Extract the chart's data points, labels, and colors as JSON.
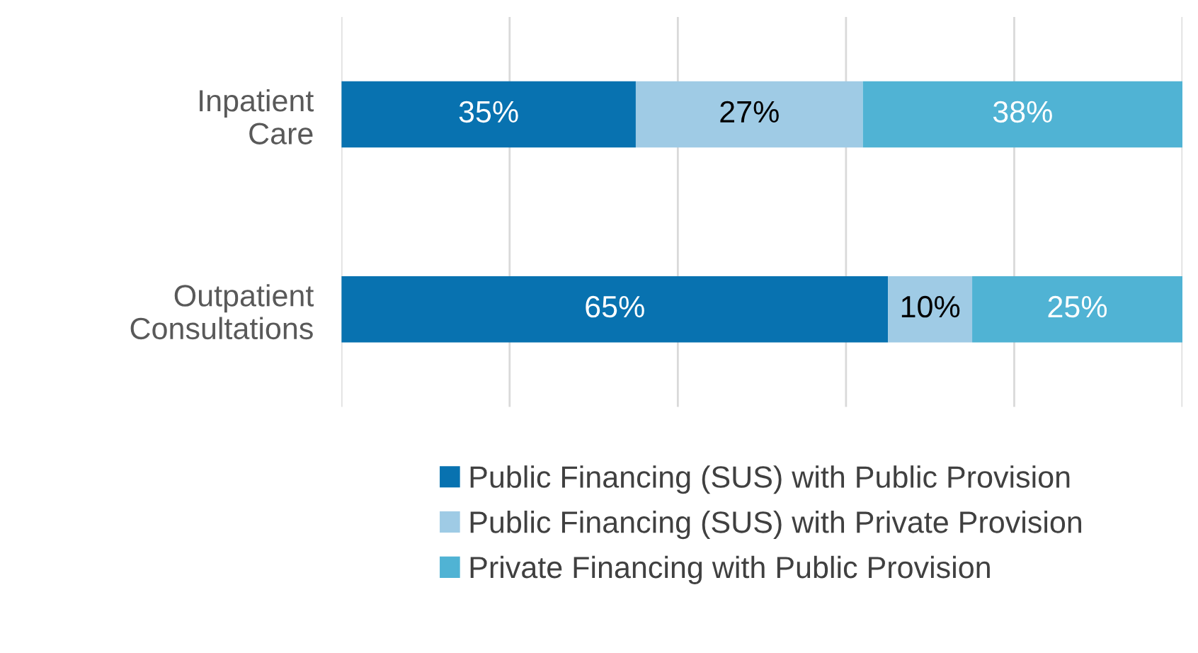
{
  "chart_data": {
    "type": "bar",
    "orientation": "horizontal",
    "stacked": true,
    "categories": [
      "Inpatient\nCare",
      "Outpatient\nConsultations"
    ],
    "series": [
      {
        "name": "Public Financing (SUS) with Public Provision",
        "color": "#0872b0",
        "values": [
          35,
          65
        ],
        "value_labels": [
          "35%",
          "65%"
        ]
      },
      {
        "name": "Public Financing (SUS) with Private Provision",
        "color": "#9fcbe5",
        "values": [
          27,
          10
        ],
        "value_labels": [
          "27%",
          "10%"
        ]
      },
      {
        "name": "Private Financing with Public Provision",
        "color": "#50b3d4",
        "values": [
          38,
          25
        ],
        "value_labels": [
          "38%",
          "25%"
        ]
      }
    ],
    "grid": "x",
    "tick_labels": "y",
    "legend": "bottom"
  }
}
